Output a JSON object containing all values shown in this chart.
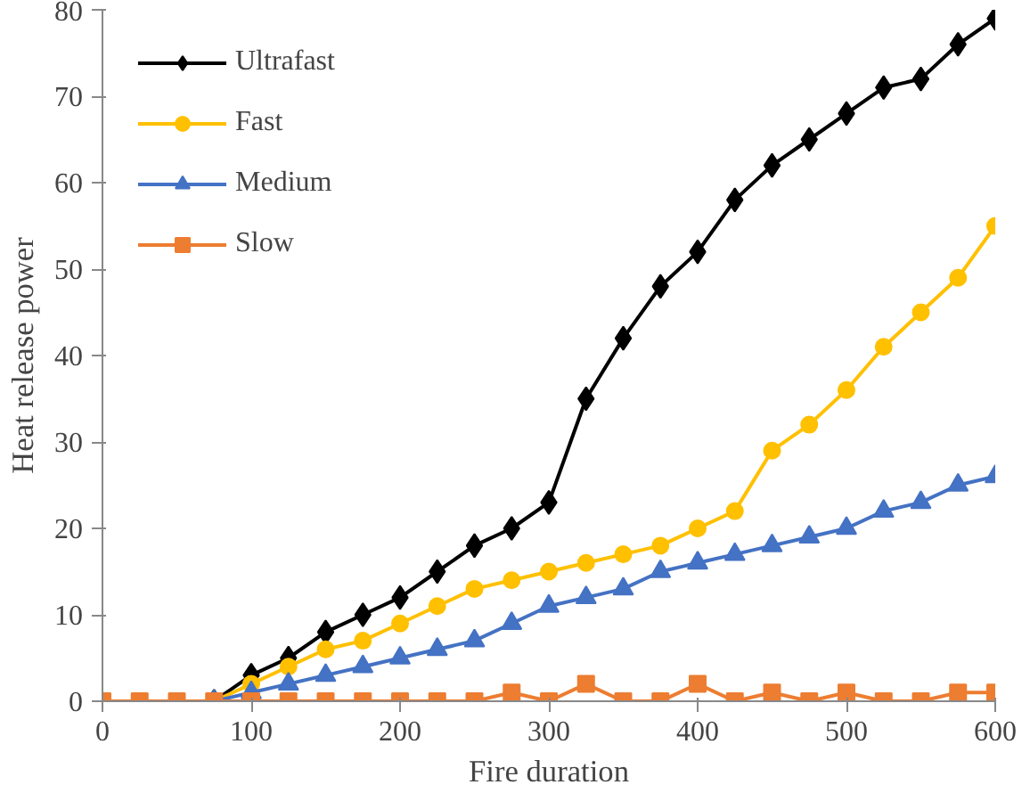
{
  "chart_data": {
    "type": "line",
    "xlabel": "Fire duration",
    "ylabel": "Heat release power",
    "x": [
      0,
      25,
      50,
      75,
      100,
      125,
      150,
      175,
      200,
      225,
      250,
      275,
      300,
      325,
      350,
      375,
      400,
      425,
      450,
      475,
      500,
      525,
      550,
      575,
      600
    ],
    "xlim": [
      0,
      600
    ],
    "xticks": [
      0,
      100,
      200,
      300,
      400,
      500,
      600
    ],
    "ylim": [
      0,
      80
    ],
    "yticks": [
      0,
      10,
      20,
      30,
      40,
      50,
      60,
      70,
      80
    ],
    "grid": false,
    "legend": "top left",
    "series": [
      {
        "name": "Ultrafast",
        "color": "#000000",
        "marker": "diamond",
        "values": [
          null,
          null,
          null,
          0,
          3,
          5,
          8,
          10,
          12,
          15,
          18,
          20,
          23,
          35,
          42,
          48,
          52,
          58,
          62,
          65,
          68,
          71,
          72,
          76,
          79
        ]
      },
      {
        "name": "Fast",
        "color": "#ffc000",
        "marker": "circle",
        "values": [
          null,
          null,
          null,
          0,
          2,
          4,
          6,
          7,
          9,
          11,
          13,
          14,
          15,
          16,
          17,
          18,
          20,
          22,
          29,
          32,
          36,
          41,
          45,
          49,
          55
        ]
      },
      {
        "name": "Medium",
        "color": "#4472c4",
        "marker": "triangle",
        "values": [
          null,
          null,
          null,
          0,
          1,
          2,
          3,
          4,
          5,
          6,
          7,
          9,
          11,
          12,
          13,
          15,
          16,
          17,
          18,
          19,
          20,
          22,
          23,
          25,
          26
        ]
      },
      {
        "name": "Slow",
        "color": "#ed7d31",
        "marker": "square",
        "values": [
          0,
          0,
          0,
          0,
          0,
          0,
          0,
          0,
          0,
          0,
          0,
          1,
          0,
          2,
          0,
          0,
          2,
          0,
          1,
          0,
          1,
          0,
          0,
          1,
          1
        ]
      }
    ]
  }
}
